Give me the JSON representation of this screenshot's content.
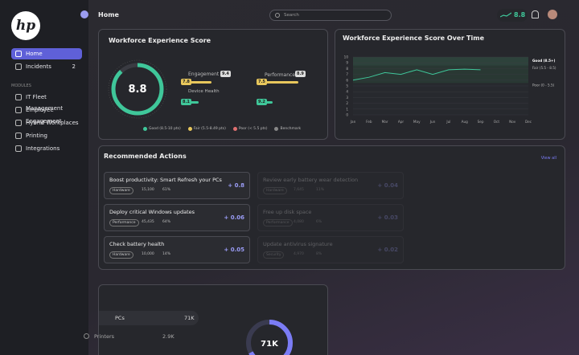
{
  "sidebar": {
    "logo": "hp",
    "nav": [
      {
        "label": "Home"
      },
      {
        "label": "Incidents",
        "count": "2"
      }
    ],
    "section": "MODULES",
    "modules": [
      "IT Fleet Management",
      "Employee Engagement",
      "Hybrid Workplaces",
      "Printing",
      "Integrations"
    ]
  },
  "topbar": {
    "title": "Home",
    "search": "Search",
    "score": "8.8"
  },
  "score_card": {
    "title": "Workforce Experience Score",
    "score": "8.8",
    "left": {
      "label": "Engagement",
      "badge": "9.4",
      "bar1": "7.8",
      "sublabel": "Device Health",
      "bar2": "8.1"
    },
    "right": {
      "label": "Performance",
      "badge": "8.9",
      "bar1": "7.5",
      "bar2": "9.2"
    },
    "legend": [
      "Good (8.5-10 pts)",
      "Fair (5.5-8.49 pts)",
      "Poor (< 5.5 pts)",
      "Benchmark"
    ]
  },
  "chart_data": {
    "type": "line",
    "title": "Workforce Experience Score Over Time",
    "categories": [
      "Jan",
      "Feb",
      "Mar",
      "Apr",
      "May",
      "Jun",
      "Jul",
      "Aug",
      "Sep",
      "Oct",
      "Nov",
      "Dec"
    ],
    "values": [
      6,
      6.5,
      7.3,
      7,
      7.8,
      7,
      7.8,
      7.9,
      7.8,
      null,
      null,
      null
    ],
    "color": "#3fc79a",
    "ylim": [
      0,
      10
    ],
    "yticks": [
      0,
      1,
      2,
      3,
      4,
      5,
      6,
      7,
      8,
      9,
      10
    ],
    "bands": [
      {
        "label": "Good (8.5+)",
        "from": 8.5,
        "to": 10
      },
      {
        "label": "Fair (5.5 - 8.5)",
        "from": 5.5,
        "to": 8.5
      },
      {
        "label": "Poor (0 - 5.5)",
        "from": 0,
        "to": 5.5
      }
    ]
  },
  "actions": {
    "title": "Recommended Actions",
    "link": "View all",
    "items": [
      {
        "title": "Boost productivity: Smart Refresh your PCs",
        "tag": "Hardware",
        "devices": "15,100",
        "percent": "61%",
        "impact": "+ 0.8"
      },
      {
        "title": "Deploy critical Windows updates",
        "tag": "Performance",
        "devices": "45,435",
        "percent": "64%",
        "impact": "+ 0.06"
      },
      {
        "title": "Check battery health",
        "tag": "Hardware",
        "devices": "10,000",
        "percent": "14%",
        "impact": "+ 0.05"
      },
      {
        "title": "Review early battery wear detection",
        "tag": "Hardware",
        "devices": "7,645",
        "percent": "11%",
        "impact": "+ 0.04"
      },
      {
        "title": "Free up disk space",
        "tag": "Performance",
        "devices": "4,080",
        "percent": "6%",
        "impact": "+ 0.03"
      },
      {
        "title": "Update antivirus signature",
        "tag": "Security",
        "devices": "4,970",
        "percent": "8%",
        "impact": "+ 0.02"
      }
    ]
  },
  "fleet": {
    "rows": [
      {
        "label": "PCs",
        "value": "71K"
      },
      {
        "label": "Printers",
        "value": "2.9K"
      }
    ],
    "center": "71K"
  }
}
